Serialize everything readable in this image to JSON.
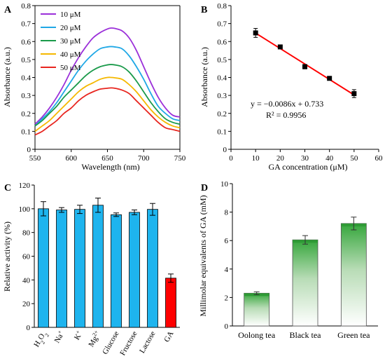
{
  "chart_data": [
    {
      "panel": "A",
      "type": "line",
      "xlabel": "Wavelength (nm)",
      "ylabel": "Absorbance (a.u.)",
      "xlim": [
        550,
        750
      ],
      "ylim": [
        0,
        0.8
      ],
      "xticks": [
        550,
        600,
        650,
        700,
        750
      ],
      "yticks": [
        0,
        0.1,
        0.2,
        0.3,
        0.4,
        0.5,
        0.6,
        0.7,
        0.8
      ],
      "legend_position": "top-left",
      "series": [
        {
          "name": "10 μM",
          "color": "#9b30d9",
          "x": [
            550,
            560,
            570,
            580,
            590,
            600,
            610,
            620,
            630,
            640,
            650,
            655,
            660,
            670,
            680,
            690,
            700,
            710,
            720,
            730,
            740,
            750
          ],
          "values": [
            0.14,
            0.18,
            0.23,
            0.29,
            0.36,
            0.44,
            0.51,
            0.57,
            0.62,
            0.65,
            0.67,
            0.675,
            0.673,
            0.66,
            0.62,
            0.55,
            0.46,
            0.37,
            0.29,
            0.23,
            0.19,
            0.18
          ]
        },
        {
          "name": "20 μM",
          "color": "#1fa8e6",
          "x": [
            550,
            560,
            570,
            580,
            590,
            600,
            610,
            620,
            630,
            640,
            650,
            655,
            660,
            670,
            680,
            690,
            700,
            710,
            720,
            730,
            740,
            750
          ],
          "values": [
            0.13,
            0.17,
            0.21,
            0.26,
            0.32,
            0.38,
            0.44,
            0.49,
            0.53,
            0.56,
            0.57,
            0.572,
            0.57,
            0.56,
            0.52,
            0.46,
            0.39,
            0.31,
            0.24,
            0.2,
            0.17,
            0.16
          ]
        },
        {
          "name": "30 μM",
          "color": "#1a9a4a",
          "x": [
            550,
            560,
            570,
            580,
            590,
            600,
            610,
            620,
            630,
            640,
            650,
            655,
            660,
            670,
            680,
            690,
            700,
            710,
            720,
            730,
            740,
            750
          ],
          "values": [
            0.13,
            0.16,
            0.2,
            0.24,
            0.29,
            0.33,
            0.37,
            0.41,
            0.44,
            0.46,
            0.47,
            0.472,
            0.47,
            0.46,
            0.43,
            0.38,
            0.32,
            0.26,
            0.21,
            0.17,
            0.15,
            0.14
          ]
        },
        {
          "name": "40 μM",
          "color": "#f5b800",
          "x": [
            550,
            560,
            570,
            580,
            590,
            600,
            610,
            620,
            630,
            640,
            650,
            655,
            660,
            670,
            680,
            690,
            700,
            710,
            720,
            730,
            740,
            750
          ],
          "values": [
            0.1,
            0.13,
            0.16,
            0.2,
            0.24,
            0.28,
            0.32,
            0.35,
            0.37,
            0.39,
            0.4,
            0.4,
            0.398,
            0.39,
            0.36,
            0.32,
            0.27,
            0.22,
            0.18,
            0.15,
            0.13,
            0.12
          ]
        },
        {
          "name": "50 μM",
          "color": "#e8251f",
          "x": [
            550,
            560,
            570,
            580,
            590,
            600,
            610,
            620,
            630,
            640,
            650,
            655,
            660,
            670,
            680,
            690,
            700,
            710,
            720,
            730,
            740,
            750
          ],
          "values": [
            0.08,
            0.1,
            0.13,
            0.16,
            0.2,
            0.23,
            0.27,
            0.3,
            0.32,
            0.335,
            0.34,
            0.342,
            0.34,
            0.33,
            0.31,
            0.27,
            0.23,
            0.19,
            0.15,
            0.12,
            0.11,
            0.1
          ]
        }
      ]
    },
    {
      "panel": "B",
      "type": "scatter",
      "xlabel": "GA concentration (μM)",
      "ylabel": "Absorbance (a.u.)",
      "xlim": [
        0,
        60
      ],
      "ylim": [
        0,
        0.8
      ],
      "xticks": [
        0,
        10,
        20,
        30,
        40,
        50,
        60
      ],
      "yticks": [
        0,
        0.1,
        0.2,
        0.3,
        0.4,
        0.5,
        0.6,
        0.7,
        0.8
      ],
      "x": [
        10,
        20,
        30,
        40,
        50
      ],
      "values": [
        0.648,
        0.57,
        0.46,
        0.395,
        0.31
      ],
      "errors": [
        0.025,
        0.01,
        0.012,
        0.01,
        0.022
      ],
      "fit": {
        "slope": -0.0086,
        "intercept": 0.733,
        "color": "#ff0000"
      },
      "annotations": [
        "y = −0.0086x + 0.733",
        "R² = 0.9956"
      ]
    },
    {
      "panel": "C",
      "type": "bar",
      "ylabel": "Relative activity (%)",
      "ylim": [
        0,
        120
      ],
      "yticks": [
        0,
        20,
        40,
        60,
        80,
        100,
        120
      ],
      "categories": [
        {
          "base": "H",
          "sub": "2",
          "base2": "O",
          "sub2": "2",
          "sup": ""
        },
        {
          "base": "Na",
          "sup": "+"
        },
        {
          "base": "K",
          "sup": "+"
        },
        {
          "base": "Mg",
          "sup": "2+"
        },
        {
          "base": "Glucose",
          "sup": ""
        },
        {
          "base": "Fructose",
          "sup": ""
        },
        {
          "base": "Lactose",
          "sup": ""
        },
        {
          "base": "GA",
          "sup": ""
        }
      ],
      "values": [
        100,
        99,
        99.5,
        103,
        95,
        97,
        99.5,
        41.5
      ],
      "errors": [
        6,
        2,
        3.5,
        6,
        1.5,
        2,
        5,
        3.5
      ],
      "colors": [
        "#1eb4ee",
        "#1eb4ee",
        "#1eb4ee",
        "#1eb4ee",
        "#1eb4ee",
        "#1eb4ee",
        "#1eb4ee",
        "#ff0000"
      ]
    },
    {
      "panel": "D",
      "type": "bar",
      "ylabel": "Millimolar equivalents of GA  (mM)",
      "ylim": [
        0,
        10
      ],
      "yticks": [
        0,
        2,
        4,
        6,
        8,
        10
      ],
      "categories": [
        "Oolong tea",
        "Black tea",
        "Green tea"
      ],
      "values": [
        2.3,
        6.05,
        7.2
      ],
      "errors": [
        0.1,
        0.3,
        0.45
      ],
      "color": "#2e9a35"
    }
  ]
}
